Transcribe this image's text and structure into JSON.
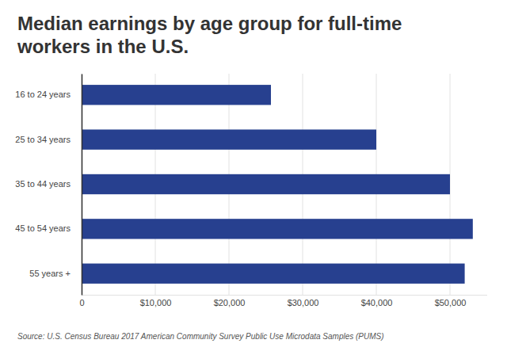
{
  "chart_data": {
    "type": "bar",
    "orientation": "horizontal",
    "title": "Median earnings by age group for full-time workers in the U.S.",
    "source": "Source: U.S. Census Bureau 2017 American Community Survey Public Use Microdata Samples (PUMS)",
    "categories": [
      "16 to 24 years",
      "25 to 34 years",
      "35 to 44 years",
      "45 to 54 years",
      "55 years +"
    ],
    "values": [
      25700,
      40000,
      50000,
      53100,
      52000
    ],
    "color": "#27408f",
    "xlim": [
      0,
      55000
    ],
    "xticks": [
      0,
      {
        "value": 10000,
        "label": "$10,000"
      },
      {
        "value": 20000,
        "label": "$20,000"
      },
      {
        "value": 30000,
        "label": "$30,000"
      },
      {
        "value": 40000,
        "label": "$40,000"
      },
      {
        "value": 50000,
        "label": "$50,000"
      }
    ],
    "grid": true
  }
}
